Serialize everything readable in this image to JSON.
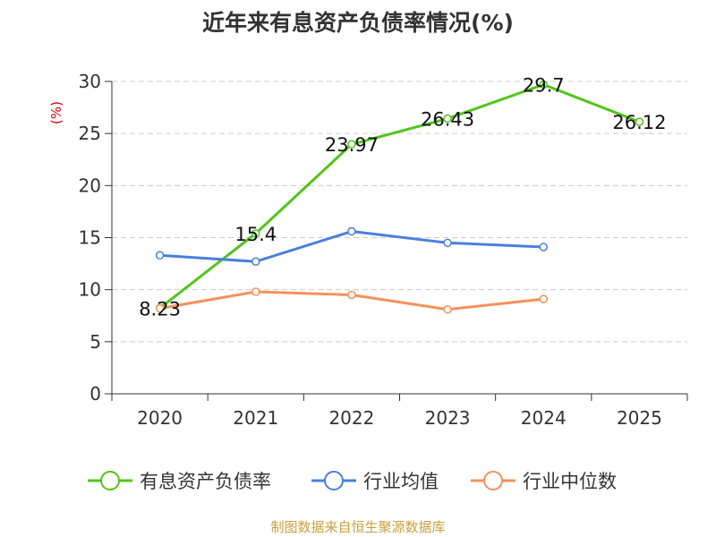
{
  "chart_data": {
    "type": "line",
    "title": "近年来有息资产负债率情况(%)",
    "ylabel": "(%)",
    "xlabel": "",
    "categories": [
      "2020",
      "2021",
      "2022",
      "2023",
      "2024",
      "2025"
    ],
    "ylim": [
      0,
      30
    ],
    "yticks": [
      0,
      5,
      10,
      15,
      20,
      25,
      30
    ],
    "grid": true,
    "legend_position": "bottom",
    "series": [
      {
        "name": "有息资产负债率",
        "color": "#52c41a",
        "values": [
          8.23,
          15.4,
          23.97,
          26.43,
          29.7,
          26.12
        ],
        "labels": [
          "8.23",
          "15.4",
          "23.97",
          "26.43",
          "29.7",
          "26.12"
        ]
      },
      {
        "name": "行业均值",
        "color": "#4a7fdc",
        "values": [
          13.3,
          12.7,
          15.6,
          14.5,
          14.1,
          null
        ]
      },
      {
        "name": "行业中位数",
        "color": "#f5915a",
        "values": [
          8.2,
          9.8,
          9.5,
          8.1,
          9.1,
          null
        ]
      }
    ]
  },
  "source_note": "制图数据来自恒生聚源数据库",
  "colors": {
    "ylabel": "#dd0000",
    "source_note": "#c8a040",
    "axis": "#333333",
    "grid": "#cccccc"
  }
}
